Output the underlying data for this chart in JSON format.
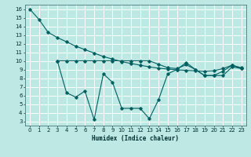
{
  "xlabel": "Humidex (Indice chaleur)",
  "bg_color": "#bde8e4",
  "grid_color": "#ffffff",
  "line_color": "#006060",
  "xlim": [
    -0.5,
    23.5
  ],
  "ylim": [
    2.5,
    16.5
  ],
  "xticks": [
    0,
    1,
    2,
    3,
    4,
    5,
    6,
    7,
    8,
    9,
    10,
    11,
    12,
    13,
    14,
    15,
    16,
    17,
    18,
    19,
    20,
    21,
    22,
    23
  ],
  "yticks": [
    3,
    4,
    5,
    6,
    7,
    8,
    9,
    10,
    11,
    12,
    13,
    14,
    15,
    16
  ],
  "line1_x": [
    0,
    1,
    2,
    3,
    4,
    5,
    6,
    7,
    8,
    9,
    10,
    11,
    12,
    13,
    14,
    15,
    16,
    17,
    18,
    19,
    20,
    21,
    22,
    23
  ],
  "line1_y": [
    16,
    14.8,
    13.3,
    12.7,
    12.2,
    11.7,
    11.3,
    10.9,
    10.5,
    10.2,
    9.9,
    9.7,
    9.5,
    9.3,
    9.15,
    9.05,
    8.95,
    8.9,
    8.85,
    8.8,
    8.85,
    9.1,
    9.5,
    9.2
  ],
  "line2_x": [
    3,
    4,
    5,
    6,
    7,
    8,
    9,
    10,
    11,
    12,
    13,
    14,
    15,
    16,
    17,
    18,
    19,
    20,
    21,
    22,
    23
  ],
  "line2_y": [
    10,
    10,
    10,
    10,
    10,
    10,
    10,
    10,
    10,
    10,
    10,
    9.6,
    9.2,
    9.1,
    9.55,
    9.0,
    8.3,
    8.3,
    8.3,
    9.3,
    9.1
  ],
  "line3_x": [
    3,
    4,
    5,
    6,
    7,
    8,
    9,
    10,
    11,
    12,
    13,
    14,
    15,
    16,
    17,
    18,
    19,
    20,
    21,
    22,
    23
  ],
  "line3_y": [
    10,
    6.3,
    5.8,
    6.5,
    3.2,
    8.5,
    7.5,
    4.5,
    4.5,
    4.5,
    3.3,
    5.5,
    8.5,
    9.0,
    9.8,
    9.0,
    8.3,
    8.3,
    8.8,
    9.5,
    9.1
  ]
}
